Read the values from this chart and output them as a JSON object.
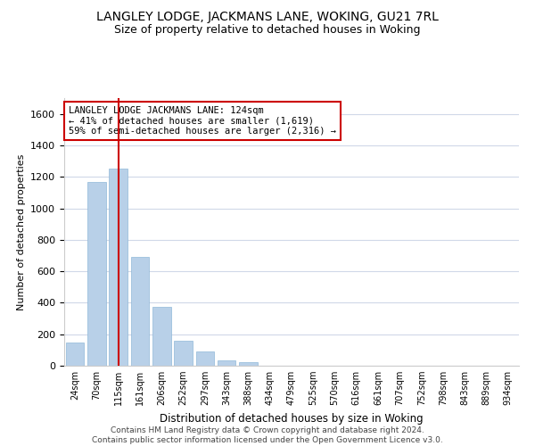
{
  "title": "LANGLEY LODGE, JACKMANS LANE, WOKING, GU21 7RL",
  "subtitle": "Size of property relative to detached houses in Woking",
  "xlabel": "Distribution of detached houses by size in Woking",
  "ylabel": "Number of detached properties",
  "bar_color": "#b8d0e8",
  "bar_edge_color": "#90b8d8",
  "categories": [
    "24sqm",
    "70sqm",
    "115sqm",
    "161sqm",
    "206sqm",
    "252sqm",
    "297sqm",
    "343sqm",
    "388sqm",
    "434sqm",
    "479sqm",
    "525sqm",
    "570sqm",
    "616sqm",
    "661sqm",
    "707sqm",
    "752sqm",
    "798sqm",
    "843sqm",
    "889sqm",
    "934sqm"
  ],
  "values": [
    150,
    1165,
    1255,
    690,
    375,
    160,
    90,
    35,
    20,
    0,
    0,
    0,
    0,
    0,
    0,
    0,
    0,
    0,
    0,
    0,
    0
  ],
  "ylim": [
    0,
    1700
  ],
  "yticks": [
    0,
    200,
    400,
    600,
    800,
    1000,
    1200,
    1400,
    1600
  ],
  "vline_color": "#cc0000",
  "annotation_title": "LANGLEY LODGE JACKMANS LANE: 124sqm",
  "annotation_line1": "← 41% of detached houses are smaller (1,619)",
  "annotation_line2": "59% of semi-detached houses are larger (2,316) →",
  "annotation_box_color": "#ffffff",
  "annotation_box_edge": "#cc0000",
  "footer_line1": "Contains HM Land Registry data © Crown copyright and database right 2024.",
  "footer_line2": "Contains public sector information licensed under the Open Government Licence v3.0.",
  "background_color": "#ffffff",
  "grid_color": "#d0d8e8"
}
